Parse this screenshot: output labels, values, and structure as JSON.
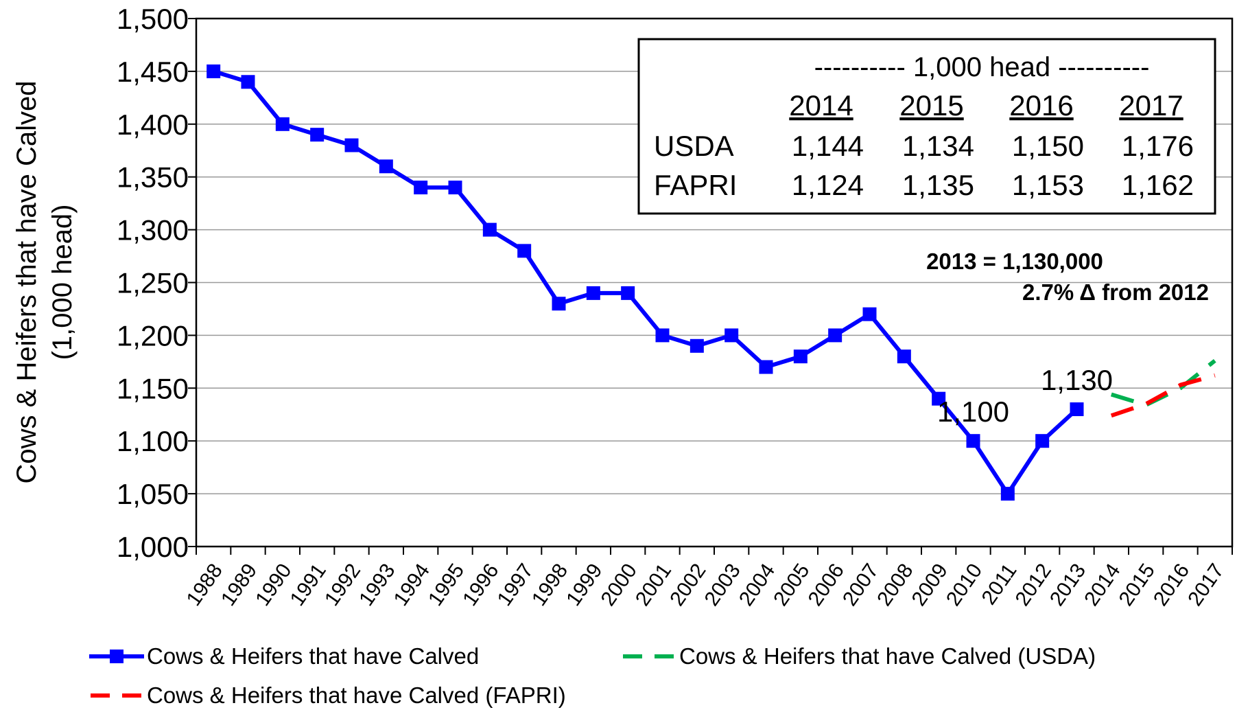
{
  "chart_data": {
    "type": "line",
    "ylabel": "Cows & Heifers that have Calved",
    "ylabel_unit": "(1,000 head)",
    "ylim": [
      1000,
      1500
    ],
    "yticks": [
      1000,
      1050,
      1100,
      1150,
      1200,
      1250,
      1300,
      1350,
      1400,
      1450,
      1500
    ],
    "ytick_labels": [
      "1,000",
      "1,050",
      "1,100",
      "1,150",
      "1,200",
      "1,250",
      "1,300",
      "1,350",
      "1,400",
      "1,450",
      "1,500"
    ],
    "categories": [
      "1988",
      "1989",
      "1990",
      "1991",
      "1992",
      "1993",
      "1994",
      "1995",
      "1996",
      "1997",
      "1998",
      "1999",
      "2000",
      "2001",
      "2002",
      "2003",
      "2004",
      "2005",
      "2006",
      "2007",
      "2008",
      "2009",
      "2010",
      "2011",
      "2012",
      "2013",
      "2014",
      "2015",
      "2016",
      "2017"
    ],
    "grid": true,
    "legend_position": "bottom",
    "series": [
      {
        "name": "Cows & Heifers that have Calved",
        "color": "#0000ff",
        "style": "solid-square-markers",
        "x": [
          "1988",
          "1989",
          "1990",
          "1991",
          "1992",
          "1993",
          "1994",
          "1995",
          "1996",
          "1997",
          "1998",
          "1999",
          "2000",
          "2001",
          "2002",
          "2003",
          "2004",
          "2005",
          "2006",
          "2007",
          "2008",
          "2009",
          "2010",
          "2011",
          "2012",
          "2013"
        ],
        "values": [
          1450,
          1440,
          1400,
          1390,
          1380,
          1360,
          1340,
          1340,
          1300,
          1280,
          1230,
          1240,
          1240,
          1200,
          1190,
          1200,
          1170,
          1180,
          1200,
          1220,
          1180,
          1140,
          1100,
          1050,
          1100,
          1130
        ]
      },
      {
        "name": "Cows & Heifers that have Calved (USDA)",
        "color": "#00b050",
        "style": "dashed",
        "x": [
          "2014",
          "2015",
          "2016",
          "2017"
        ],
        "values": [
          1144,
          1134,
          1150,
          1176
        ]
      },
      {
        "name": "Cows & Heifers that have Calved (FAPRI)",
        "color": "#ff0000",
        "style": "dashed",
        "x": [
          "2014",
          "2015",
          "2016",
          "2017"
        ],
        "values": [
          1124,
          1135,
          1153,
          1162
        ]
      }
    ],
    "data_labels": [
      {
        "x": "2010",
        "text": "1,100"
      },
      {
        "x": "2013",
        "text": "1,130"
      }
    ],
    "table": {
      "unit_header": "---------- 1,000 head ----------",
      "columns": [
        "2014",
        "2015",
        "2016",
        "2017"
      ],
      "rows": [
        {
          "label": "USDA",
          "values": [
            "1,144",
            "1,134",
            "1,150",
            "1,176"
          ]
        },
        {
          "label": "FAPRI",
          "values": [
            "1,124",
            "1,135",
            "1,153",
            "1,162"
          ]
        }
      ]
    },
    "annotation": {
      "line1": "2013 = 1,130,000",
      "line2": "2.7% Δ from 2012"
    }
  }
}
